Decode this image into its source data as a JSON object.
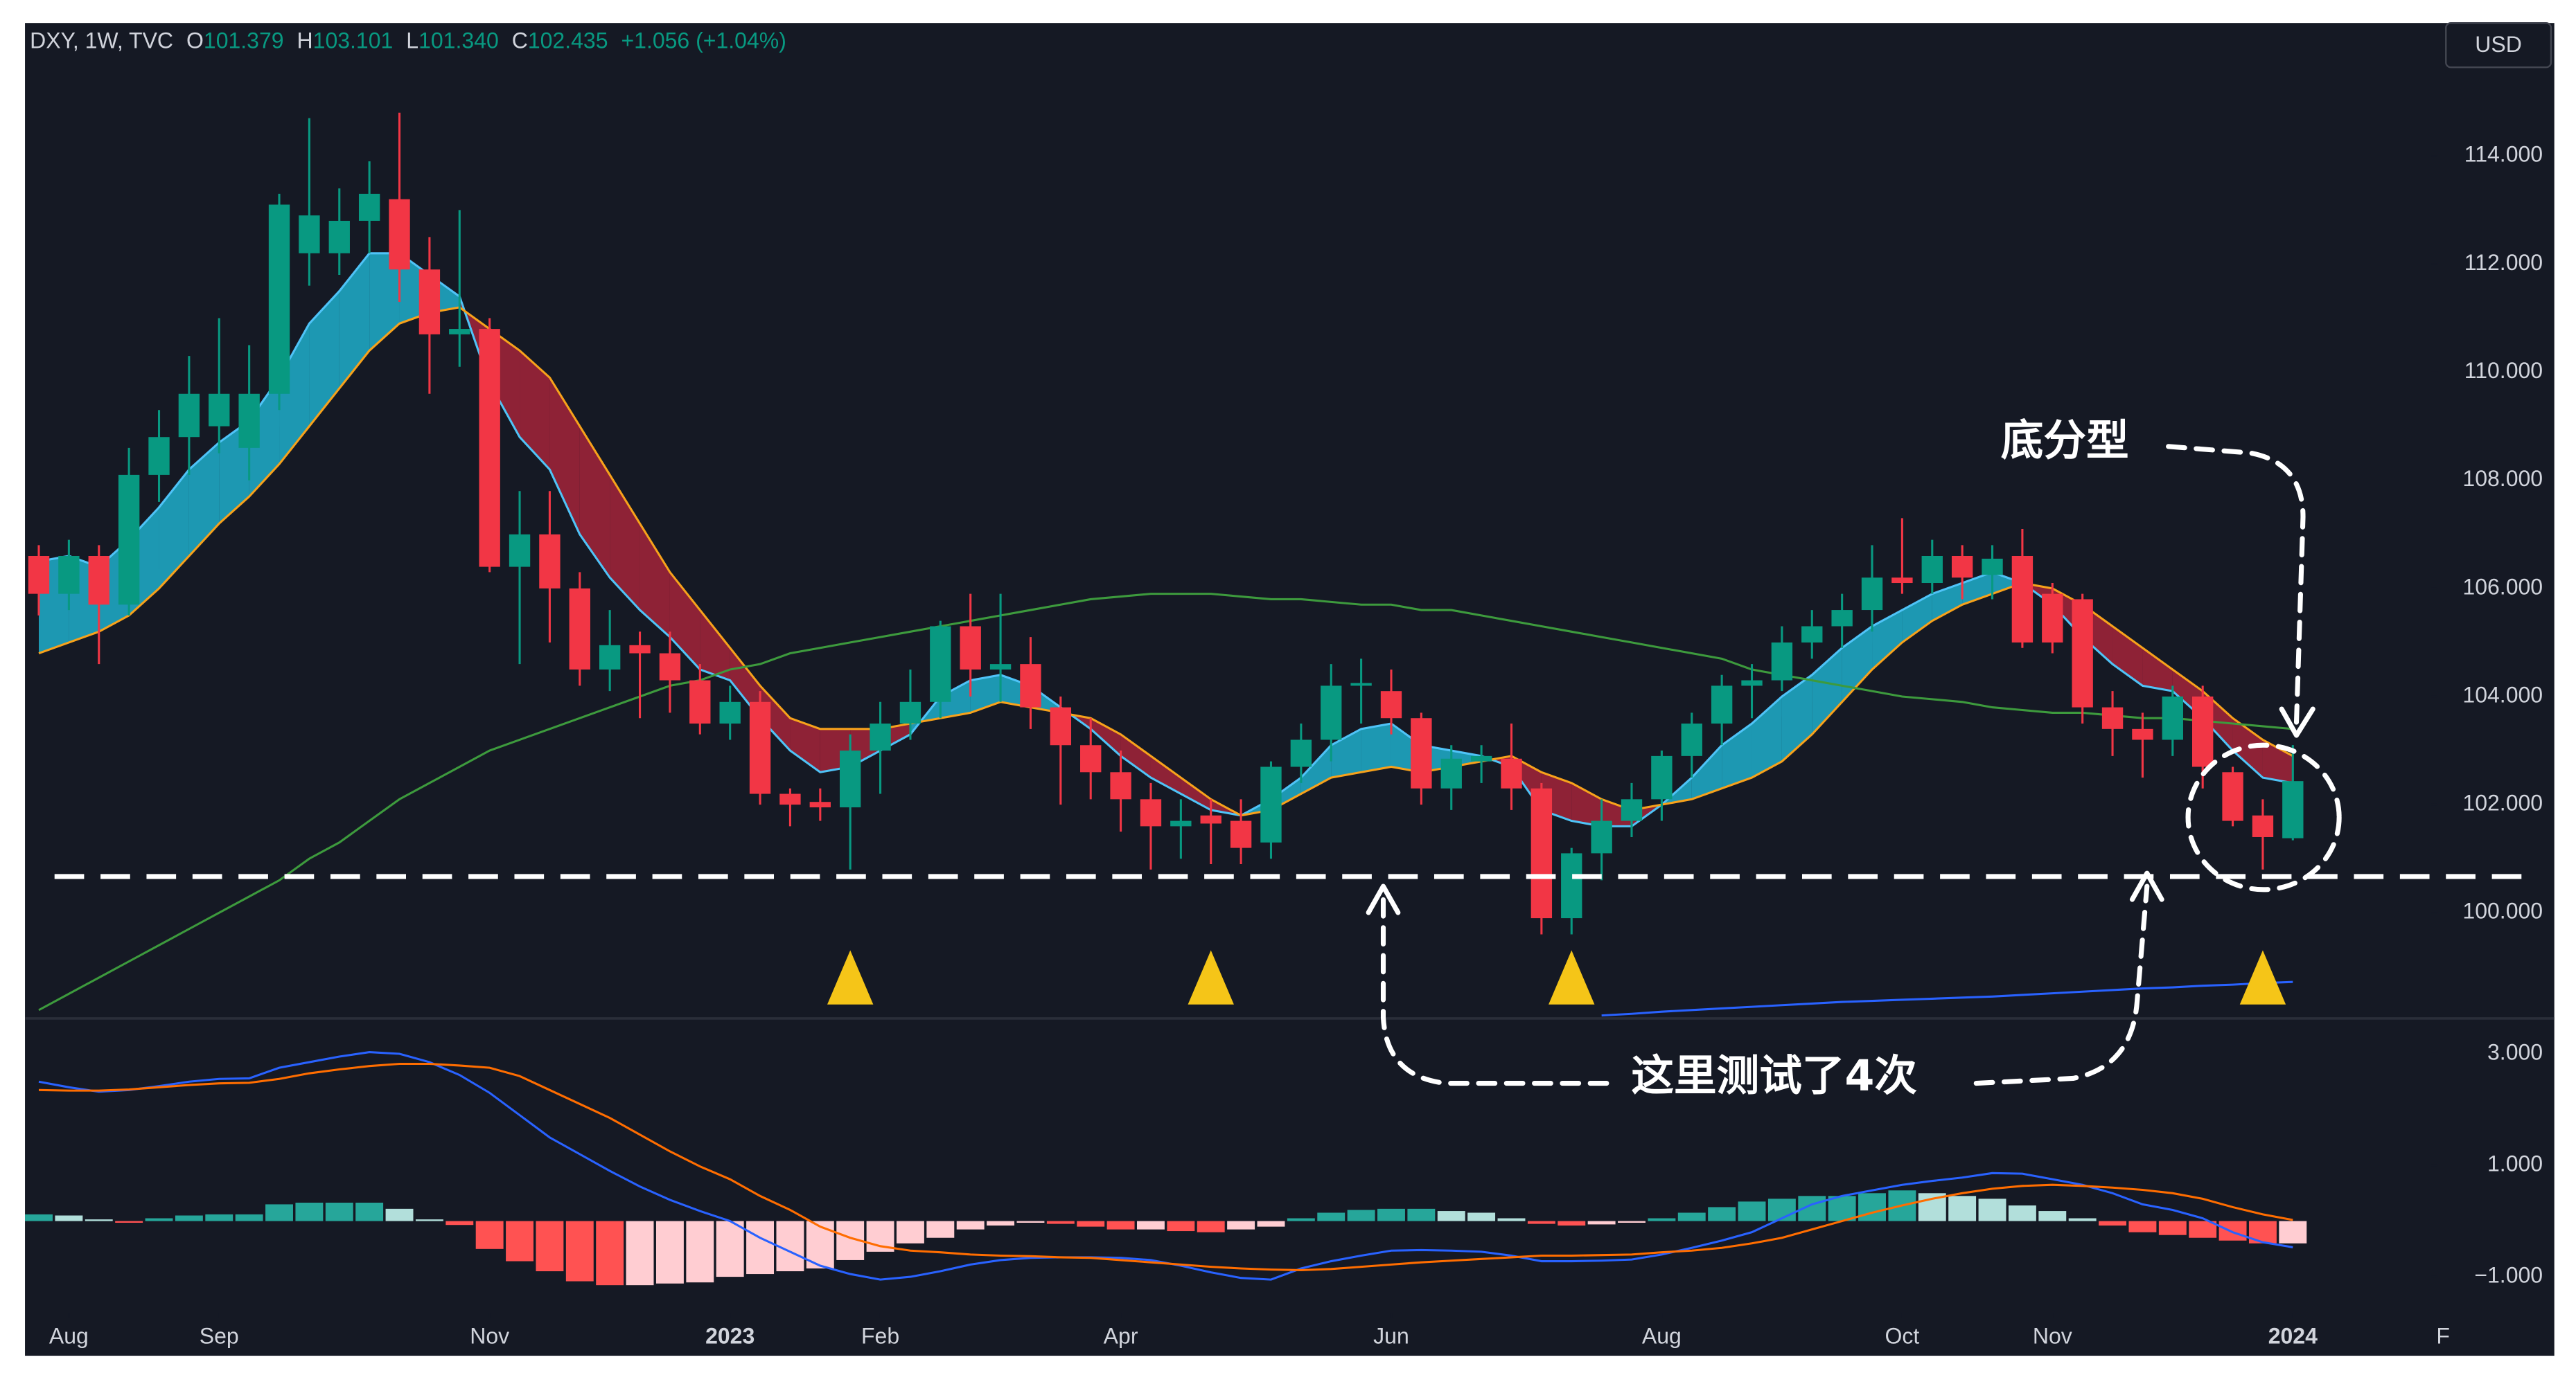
{
  "chart_data": [
    {
      "type": "candlestick",
      "legend_parts": [
        {
          "text": "DXY, 1W, TVC",
          "color": "#d1d4dc"
        },
        {
          "text": "O",
          "color": "#d1d4dc"
        },
        {
          "text": "101.379",
          "color": "#089981"
        },
        {
          "text": "H",
          "color": "#d1d4dc"
        },
        {
          "text": "103.101",
          "color": "#089981"
        },
        {
          "text": "L",
          "color": "#d1d4dc"
        },
        {
          "text": "101.340",
          "color": "#089981"
        },
        {
          "text": "C",
          "color": "#d1d4dc"
        },
        {
          "text": "102.435",
          "color": "#089981"
        },
        {
          "text": "+1.056 (+1.04%)",
          "color": "#089981"
        }
      ],
      "currency": "USD",
      "up_color": "#089981",
      "down_color": "#f23645",
      "open": [
        106.6,
        105.9,
        106.6,
        105.7,
        108.1,
        108.8,
        109.0,
        108.6,
        109.6,
        112.2,
        112.2,
        112.8,
        113.2,
        111.9,
        110.7,
        110.8,
        106.4,
        107.0,
        106.0,
        104.5,
        104.95,
        104.8,
        104.3,
        103.5,
        103.9,
        102.2,
        102.05,
        101.95,
        103.0,
        103.5,
        103.9,
        105.3,
        104.5,
        104.6,
        103.8,
        103.1,
        102.6,
        102.1,
        101.6,
        101.8,
        101.7,
        101.3,
        102.7,
        103.2,
        104.2,
        104.1,
        103.6,
        102.3,
        102.8,
        102.85,
        102.3,
        99.9,
        101.1,
        101.7,
        102.1,
        102.9,
        103.5,
        104.2,
        104.3,
        105.0,
        105.3,
        105.6,
        106.2,
        106.1,
        106.6,
        106.25,
        106.6,
        105.9,
        105.8,
        103.8,
        103.4,
        103.2,
        104.0,
        102.6,
        101.8,
        101.379
      ],
      "high": [
        106.8,
        106.9,
        106.8,
        108.6,
        109.3,
        110.3,
        111.0,
        110.5,
        113.3,
        114.7,
        113.4,
        113.9,
        114.8,
        112.5,
        113.0,
        111.0,
        107.8,
        107.8,
        106.3,
        105.6,
        105.2,
        105.2,
        104.6,
        104.2,
        104.1,
        102.3,
        102.3,
        103.3,
        103.9,
        104.5,
        105.4,
        105.9,
        105.9,
        105.1,
        104.0,
        103.6,
        103.0,
        102.4,
        102.1,
        102.1,
        102.1,
        102.8,
        103.5,
        104.6,
        104.7,
        104.5,
        103.7,
        103.1,
        103.1,
        103.5,
        102.4,
        101.2,
        102.1,
        102.4,
        103.0,
        103.7,
        104.4,
        104.6,
        105.3,
        105.6,
        105.9,
        106.8,
        107.3,
        106.9,
        106.8,
        106.8,
        107.1,
        106.1,
        105.9,
        104.1,
        103.7,
        104.2,
        104.2,
        102.7,
        102.1,
        103.101
      ],
      "low": [
        105.5,
        105.6,
        104.6,
        105.5,
        107.6,
        108.1,
        108.5,
        108.0,
        109.3,
        111.6,
        111.8,
        112.2,
        111.3,
        109.6,
        110.1,
        106.3,
        104.6,
        105.0,
        104.2,
        104.1,
        103.6,
        103.7,
        103.3,
        103.2,
        102.0,
        101.6,
        101.7,
        100.8,
        102.2,
        103.2,
        103.6,
        104.0,
        103.9,
        103.4,
        102.0,
        102.1,
        101.5,
        100.8,
        101.0,
        100.9,
        100.9,
        101.0,
        102.4,
        102.8,
        103.5,
        103.3,
        102.0,
        101.9,
        102.4,
        101.9,
        99.6,
        99.6,
        100.6,
        101.4,
        101.7,
        102.5,
        103.1,
        103.6,
        104.1,
        104.7,
        104.9,
        105.2,
        105.9,
        105.9,
        105.8,
        105.8,
        104.9,
        104.8,
        103.5,
        102.9,
        102.5,
        102.9,
        102.3,
        101.6,
        100.8,
        101.34
      ],
      "close": [
        105.9,
        106.6,
        105.7,
        108.1,
        108.8,
        109.6,
        109.6,
        109.6,
        113.1,
        112.9,
        112.8,
        113.3,
        111.9,
        110.7,
        110.8,
        106.4,
        107.0,
        106.0,
        104.5,
        104.95,
        104.8,
        104.3,
        103.5,
        103.9,
        102.2,
        102.0,
        101.95,
        103.0,
        103.5,
        103.9,
        105.3,
        104.5,
        104.6,
        103.8,
        103.1,
        102.6,
        102.1,
        101.6,
        101.7,
        101.65,
        101.2,
        102.7,
        103.2,
        104.2,
        104.25,
        103.6,
        102.3,
        102.85,
        102.9,
        102.3,
        99.9,
        101.1,
        101.7,
        102.1,
        102.9,
        103.5,
        104.2,
        104.3,
        105.0,
        105.3,
        105.6,
        106.2,
        106.1,
        106.6,
        106.2,
        106.55,
        105.0,
        105.0,
        103.8,
        103.4,
        103.2,
        104.0,
        102.7,
        101.7,
        101.4,
        102.435
      ],
      "overlays": [
        {
          "color": "#4fc3f7",
          "values": [
            106.5,
            106.6,
            106.4,
            106.9,
            107.5,
            108.2,
            108.7,
            109.1,
            109.9,
            110.9,
            111.5,
            112.2,
            112.2,
            111.8,
            111.4,
            109.8,
            108.8,
            108.2,
            107.0,
            106.2,
            105.6,
            105.1,
            104.5,
            104.3,
            103.6,
            103.0,
            102.6,
            102.7,
            103.0,
            103.3,
            104.0,
            104.3,
            104.4,
            104.2,
            103.8,
            103.4,
            102.9,
            102.5,
            102.2,
            101.9,
            101.8,
            102.1,
            102.5,
            103.1,
            103.4,
            103.5,
            103.1,
            103.0,
            102.9,
            102.7,
            101.9,
            101.7,
            101.6,
            101.6,
            102.0,
            102.5,
            103.1,
            103.5,
            104.0,
            104.4,
            104.9,
            105.3,
            105.6,
            105.9,
            106.1,
            106.3,
            106.1,
            105.7,
            105.1,
            104.6,
            104.2,
            104.1,
            103.6,
            103.0,
            102.5,
            102.4
          ]
        },
        {
          "color": "#f7a21b",
          "values": [
            104.8,
            105.0,
            105.2,
            105.5,
            106.0,
            106.6,
            107.2,
            107.7,
            108.3,
            109.0,
            109.7,
            110.4,
            110.9,
            111.1,
            111.2,
            110.8,
            110.4,
            109.9,
            109.0,
            108.1,
            107.2,
            106.3,
            105.6,
            104.9,
            104.2,
            103.6,
            103.4,
            103.4,
            103.4,
            103.5,
            103.6,
            103.7,
            103.9,
            103.8,
            103.7,
            103.6,
            103.3,
            102.9,
            102.5,
            102.1,
            101.8,
            101.9,
            102.2,
            102.5,
            102.6,
            102.7,
            102.6,
            102.7,
            102.8,
            102.9,
            102.6,
            102.4,
            102.1,
            101.9,
            102.0,
            102.1,
            102.3,
            102.5,
            102.8,
            103.3,
            103.9,
            104.5,
            105.0,
            105.4,
            105.7,
            105.9,
            106.1,
            106.0,
            105.7,
            105.3,
            104.9,
            104.5,
            104.1,
            103.6,
            103.2,
            102.9
          ]
        },
        {
          "color": "#3d9a3d",
          "values": [
            98.2,
            98.5,
            98.8,
            99.1,
            99.4,
            99.7,
            100.0,
            100.3,
            100.6,
            101.0,
            101.3,
            101.7,
            102.1,
            102.4,
            102.7,
            103.0,
            103.2,
            103.4,
            103.6,
            103.8,
            104.0,
            104.2,
            104.3,
            104.5,
            104.6,
            104.8,
            104.9,
            105.0,
            105.1,
            105.2,
            105.3,
            105.4,
            105.5,
            105.6,
            105.7,
            105.8,
            105.85,
            105.9,
            105.9,
            105.9,
            105.85,
            105.8,
            105.8,
            105.75,
            105.7,
            105.7,
            105.6,
            105.6,
            105.5,
            105.4,
            105.3,
            105.2,
            105.1,
            105.0,
            104.9,
            104.8,
            104.7,
            104.5,
            104.4,
            104.3,
            104.2,
            104.1,
            104.0,
            103.95,
            103.9,
            103.8,
            103.75,
            103.7,
            103.7,
            103.65,
            103.6,
            103.6,
            103.55,
            103.5,
            103.45,
            103.4
          ]
        },
        {
          "color": "#2962ff",
          "values": [
            null,
            null,
            null,
            null,
            null,
            null,
            null,
            null,
            null,
            null,
            null,
            null,
            null,
            null,
            null,
            null,
            null,
            null,
            null,
            null,
            null,
            null,
            null,
            null,
            null,
            null,
            null,
            null,
            null,
            null,
            null,
            null,
            null,
            null,
            null,
            null,
            null,
            null,
            null,
            null,
            null,
            null,
            null,
            null,
            null,
            null,
            null,
            null,
            null,
            null,
            null,
            null,
            98.1,
            98.13,
            98.17,
            98.2,
            98.23,
            98.26,
            98.29,
            98.32,
            98.35,
            98.37,
            98.39,
            98.41,
            98.43,
            98.45,
            98.48,
            98.51,
            98.54,
            98.57,
            98.6,
            98.62,
            98.65,
            98.67,
            98.7,
            98.72
          ]
        }
      ],
      "ribbon_up_color": "#1fb8d6",
      "ribbon_down_color": "#a3253a",
      "xlim": [
        -0.46,
        83.7
      ],
      "ylim": [
        98.06,
        116.46
      ],
      "yticks": [
        {
          "value": 100,
          "label": "100.000"
        },
        {
          "value": 102,
          "label": "102.000"
        },
        {
          "value": 104,
          "label": "104.000"
        },
        {
          "value": 106,
          "label": "106.000"
        },
        {
          "value": 108,
          "label": "108.000"
        },
        {
          "value": 110,
          "label": "110.000"
        },
        {
          "value": 112,
          "label": "112.000"
        },
        {
          "value": 114,
          "label": "114.000"
        }
      ],
      "grid": false,
      "support_level": 100.67,
      "signals": [
        27,
        39,
        51,
        74
      ],
      "signal_color": "#f5c518",
      "annotations": [
        "底分型",
        "这里测试了4次"
      ]
    },
    {
      "type": "macd",
      "histogram": [
        0.12,
        0.1,
        0.03,
        -0.03,
        0.05,
        0.1,
        0.12,
        0.12,
        0.3,
        0.33,
        0.33,
        0.33,
        0.22,
        0.03,
        -0.07,
        -0.5,
        -0.72,
        -0.9,
        -1.08,
        -1.15,
        -1.15,
        -1.12,
        -1.1,
        -1.0,
        -0.95,
        -0.9,
        -0.85,
        -0.7,
        -0.55,
        -0.4,
        -0.3,
        -0.15,
        -0.08,
        -0.03,
        -0.05,
        -0.1,
        -0.15,
        -0.15,
        -0.18,
        -0.2,
        -0.15,
        -0.1,
        0.05,
        0.15,
        0.2,
        0.22,
        0.22,
        0.18,
        0.15,
        0.05,
        -0.05,
        -0.08,
        -0.06,
        -0.03,
        0.05,
        0.15,
        0.25,
        0.35,
        0.4,
        0.45,
        0.45,
        0.5,
        0.55,
        0.5,
        0.45,
        0.4,
        0.28,
        0.18,
        0.05,
        -0.08,
        -0.2,
        -0.25,
        -0.3,
        -0.35,
        -0.4,
        -0.4
      ],
      "hist_colors": [
        "#26a69a",
        "#b2dfdb",
        "#ff5252",
        "#ffcdd2"
      ],
      "lines": [
        {
          "color": "#2962ff",
          "values": [
            2.5,
            2.4,
            2.32,
            2.35,
            2.42,
            2.5,
            2.55,
            2.56,
            2.75,
            2.85,
            2.95,
            3.03,
            3.0,
            2.85,
            2.62,
            2.3,
            1.9,
            1.5,
            1.2,
            0.9,
            0.62,
            0.38,
            0.18,
            0.0,
            -0.3,
            -0.55,
            -0.8,
            -0.95,
            -1.05,
            -1.0,
            -0.9,
            -0.78,
            -0.7,
            -0.66,
            -0.65,
            -0.65,
            -0.66,
            -0.7,
            -0.8,
            -0.92,
            -1.02,
            -1.05,
            -0.85,
            -0.72,
            -0.62,
            -0.53,
            -0.52,
            -0.53,
            -0.55,
            -0.62,
            -0.72,
            -0.72,
            -0.71,
            -0.69,
            -0.6,
            -0.48,
            -0.35,
            -0.2,
            0.05,
            0.3,
            0.45,
            0.55,
            0.65,
            0.72,
            0.78,
            0.86,
            0.85,
            0.75,
            0.65,
            0.5,
            0.3,
            0.2,
            0.05,
            -0.2,
            -0.38,
            -0.47
          ]
        },
        {
          "color": "#ff6d00",
          "values": [
            2.35,
            2.34,
            2.34,
            2.36,
            2.4,
            2.44,
            2.47,
            2.48,
            2.55,
            2.65,
            2.72,
            2.78,
            2.82,
            2.82,
            2.79,
            2.75,
            2.6,
            2.35,
            2.1,
            1.85,
            1.55,
            1.25,
            0.98,
            0.75,
            0.45,
            0.2,
            -0.1,
            -0.3,
            -0.45,
            -0.53,
            -0.56,
            -0.6,
            -0.62,
            -0.63,
            -0.65,
            -0.66,
            -0.7,
            -0.74,
            -0.78,
            -0.82,
            -0.85,
            -0.87,
            -0.88,
            -0.86,
            -0.82,
            -0.78,
            -0.74,
            -0.71,
            -0.68,
            -0.65,
            -0.62,
            -0.62,
            -0.61,
            -0.6,
            -0.56,
            -0.53,
            -0.48,
            -0.4,
            -0.3,
            -0.15,
            0.0,
            0.15,
            0.28,
            0.4,
            0.5,
            0.58,
            0.63,
            0.65,
            0.63,
            0.6,
            0.56,
            0.5,
            0.4,
            0.25,
            0.12,
            0.02
          ]
        }
      ],
      "xlim": [
        -0.46,
        83.7
      ],
      "ylim": [
        -1.65,
        3.59
      ],
      "yticks": [
        {
          "value": 3,
          "label": "3.000"
        },
        {
          "value": 1,
          "label": "1.000"
        },
        {
          "value": -1,
          "label": "−1.000"
        }
      ],
      "xticks": [
        {
          "value": 1,
          "label": "Aug"
        },
        {
          "value": 6,
          "label": "Sep"
        },
        {
          "value": 15,
          "label": "Nov"
        },
        {
          "value": 23,
          "label": "2023"
        },
        {
          "value": 28,
          "label": "Feb"
        },
        {
          "value": 36,
          "label": "Apr"
        },
        {
          "value": 45,
          "label": "Jun"
        },
        {
          "value": 54,
          "label": "Aug"
        },
        {
          "value": 62,
          "label": "Oct"
        },
        {
          "value": 67,
          "label": "Nov"
        },
        {
          "value": 75,
          "label": "2024"
        },
        {
          "value": 80,
          "label": "F"
        }
      ]
    }
  ]
}
